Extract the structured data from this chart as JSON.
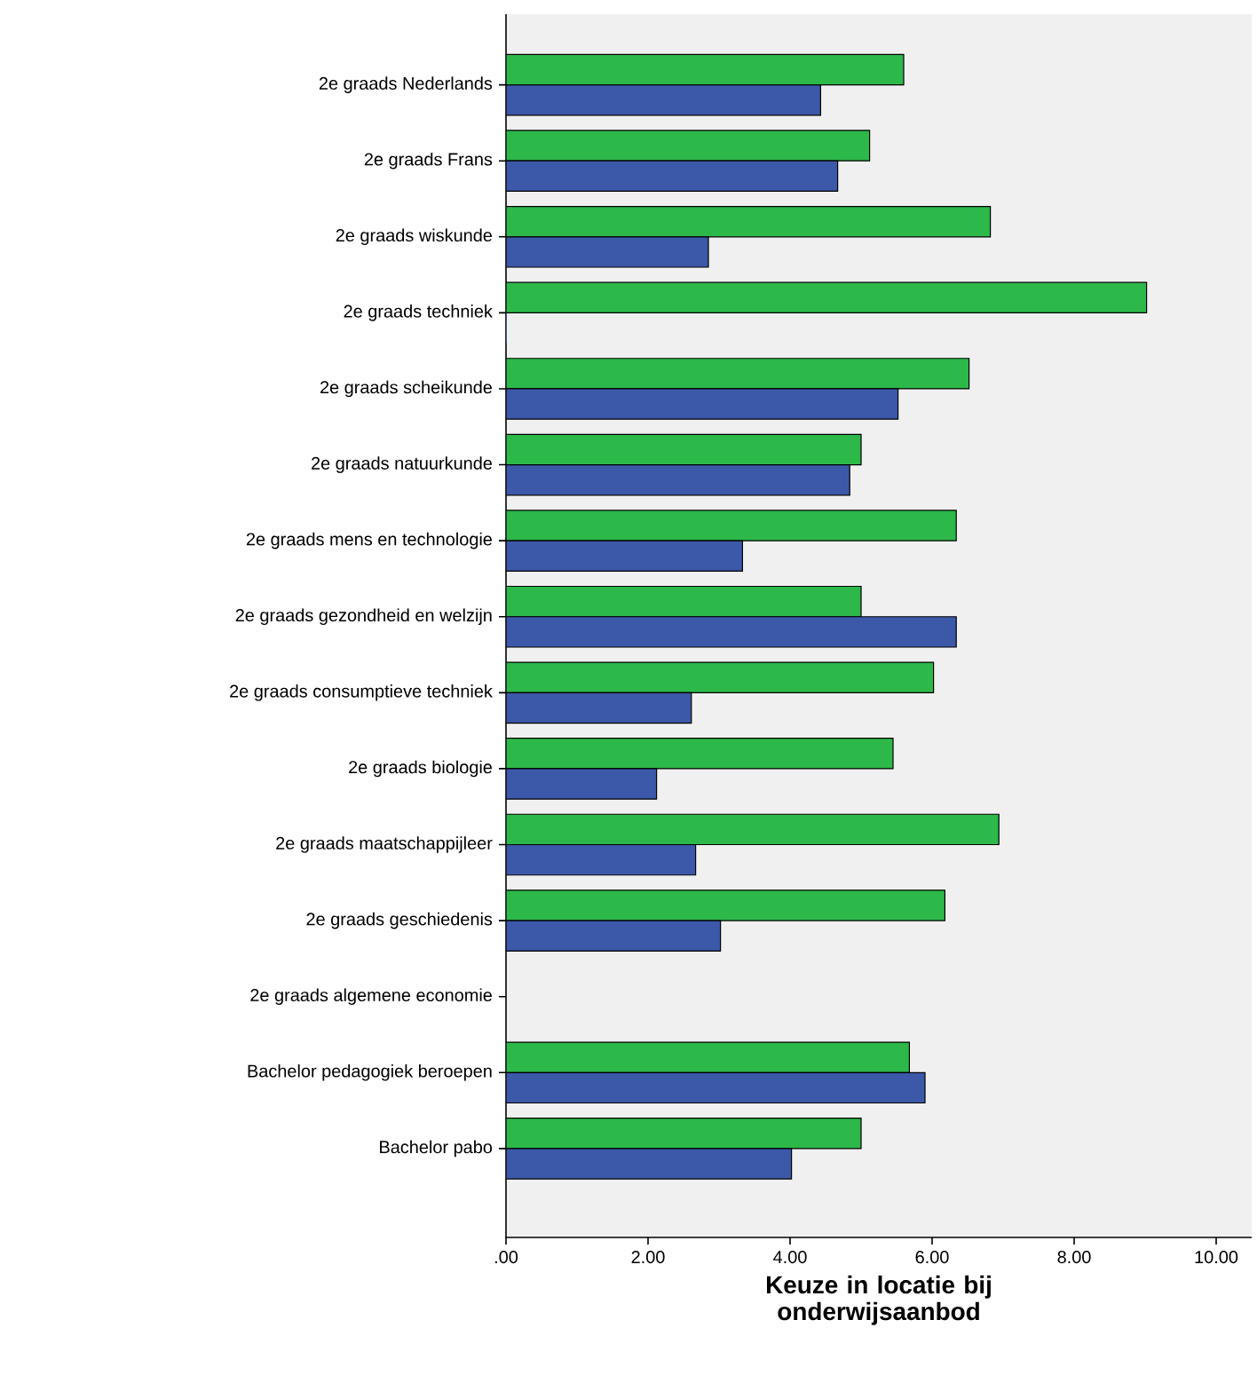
{
  "chart_data": {
    "type": "bar",
    "orientation": "horizontal",
    "xlabel": "Keuze in locatie bij onderwijsaanbod",
    "categories": [
      "2e graads Nederlands",
      "2e graads Frans",
      "2e graads wiskunde",
      "2e graads techniek",
      "2e graads scheikunde",
      "2e graads natuurkunde",
      "2e graads mens en technologie",
      "2e graads gezondheid en welzijn",
      "2e graads consumptieve techniek",
      "2e graads biologie",
      "2e graads maatschappijleer",
      "2e graads geschiedenis",
      "2e graads algemene economie",
      "Bachelor pedagogiek beroepen",
      "Bachelor pabo"
    ],
    "series": [
      {
        "color": "#2db84a",
        "values": [
          5.6,
          5.12,
          6.82,
          9.02,
          6.52,
          5.0,
          6.34,
          5.0,
          6.02,
          5.45,
          6.94,
          6.18,
          null,
          5.68,
          5.0
        ]
      },
      {
        "color": "#3c58a8",
        "values": [
          4.43,
          4.67,
          2.85,
          0.0,
          5.52,
          4.84,
          3.33,
          6.34,
          2.61,
          2.12,
          2.67,
          3.02,
          null,
          5.9,
          4.02
        ]
      }
    ],
    "xlim": [
      0,
      10.5
    ],
    "xticks": [
      {
        "value": 0,
        "label": ".00"
      },
      {
        "value": 2,
        "label": "2.00"
      },
      {
        "value": 4,
        "label": "4.00"
      },
      {
        "value": 6,
        "label": "6.00"
      },
      {
        "value": 8,
        "label": "8.00"
      },
      {
        "value": 10,
        "label": "10.00"
      }
    ]
  }
}
